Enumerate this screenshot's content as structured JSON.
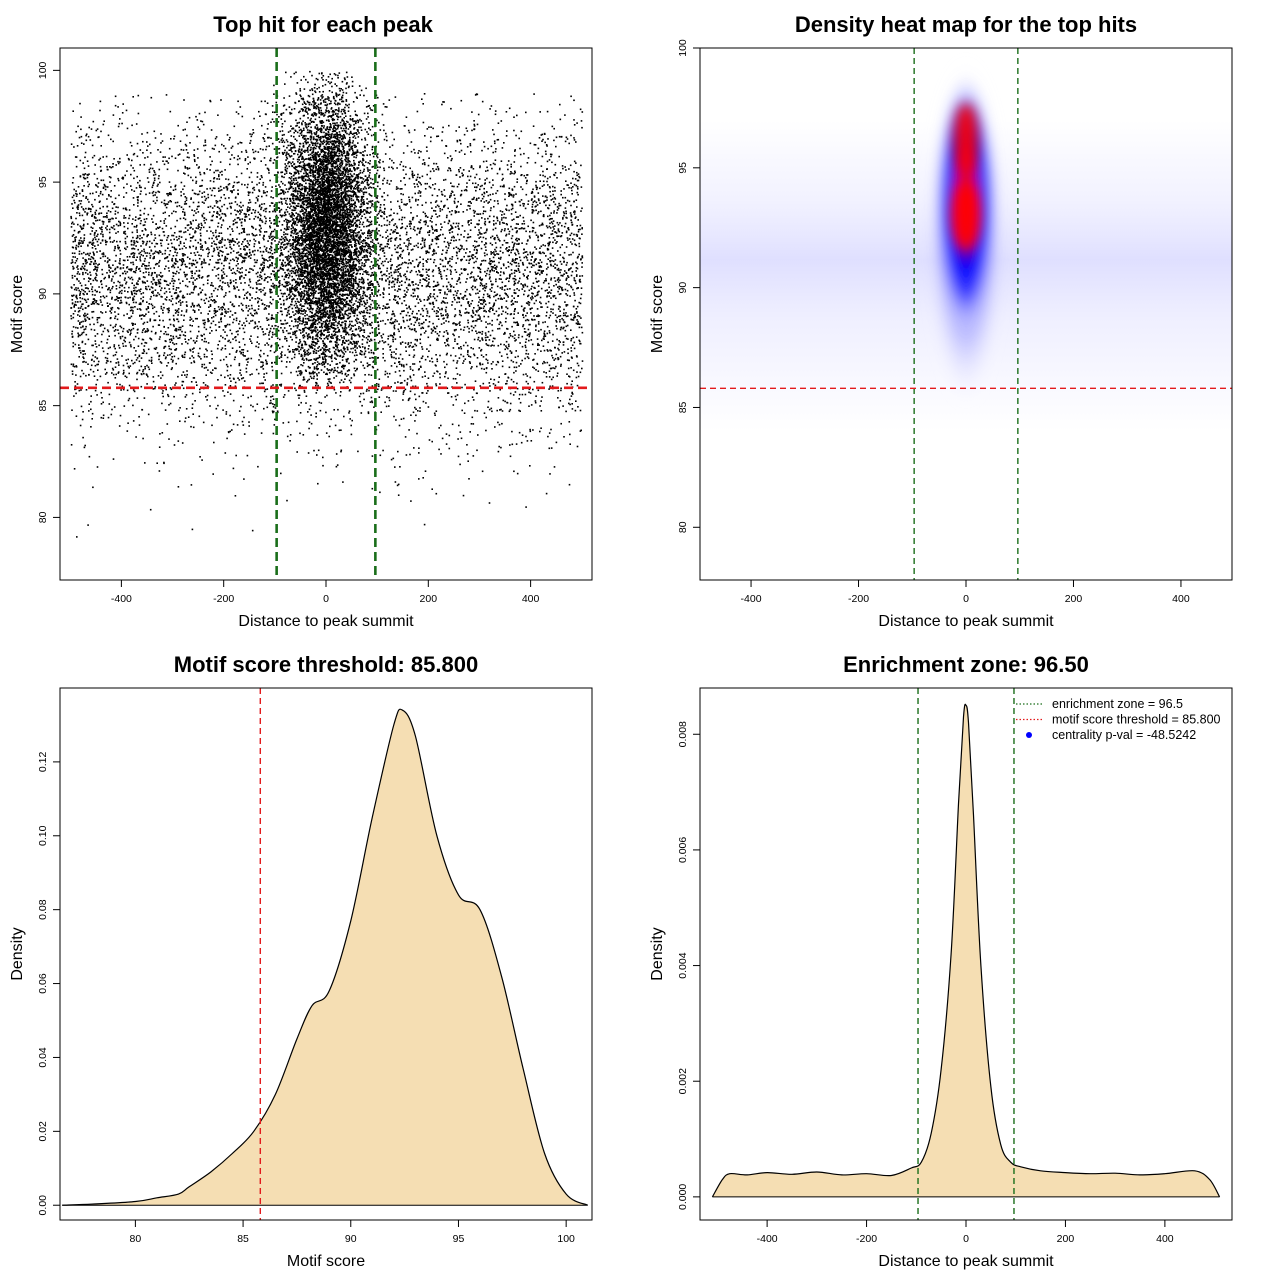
{
  "colors": {
    "scatter_point": "#000000",
    "threshold_line": "#e31a1c",
    "enrichment_line": "#1a6e1a",
    "density_fill": "#f5deb3",
    "heat_low": "#ffffff",
    "heat_mid": "#0000ff",
    "heat_high": "#ff0000",
    "legend_point": "#0000ff"
  },
  "chart_data": [
    {
      "type": "scatter",
      "title": "Top hit for each peak",
      "xlabel": "Distance to peak summit",
      "ylabel": "Motif score",
      "xlim": [
        -520,
        520
      ],
      "ylim": [
        77.2,
        101.0
      ],
      "xticks": [
        -400,
        -200,
        0,
        200,
        400
      ],
      "yticks": [
        80,
        85,
        90,
        95,
        100
      ],
      "n_points_approx": 15000,
      "x_range": [
        -500,
        500
      ],
      "y_range": [
        77.8,
        100
      ],
      "central_cluster": {
        "x_center": 0,
        "x_sd": 30,
        "y_center": 93,
        "y_range": [
          86,
          100
        ]
      },
      "background": {
        "y_center": 91,
        "y_range": [
          78,
          99
        ]
      },
      "hlines": [
        {
          "y": 85.8,
          "label": "motif score threshold"
        }
      ],
      "vlines": [
        {
          "x": -96.5
        },
        {
          "x": 96.5
        }
      ]
    },
    {
      "type": "heatmap",
      "title": "Density heat map for the top hits",
      "xlabel": "Distance to peak summit",
      "ylabel": "Motif score",
      "xlim": [
        -495,
        495
      ],
      "ylim": [
        77.8,
        100
      ],
      "xticks": [
        -400,
        -200,
        0,
        200,
        400
      ],
      "yticks": [
        80,
        85,
        90,
        95,
        100
      ],
      "peak": {
        "x": 0,
        "y": 93.5
      },
      "hlines": [
        {
          "y": 85.8
        }
      ],
      "vlines": [
        {
          "x": -96.5
        },
        {
          "x": 96.5
        }
      ]
    },
    {
      "type": "area",
      "title": "Motif score threshold: 85.800",
      "xlabel": "Motif score",
      "ylabel": "Density",
      "xlim": [
        76.5,
        101.2
      ],
      "ylim": [
        -0.004,
        0.14
      ],
      "xticks": [
        80,
        85,
        90,
        95,
        100
      ],
      "yticks": [
        0.0,
        0.02,
        0.04,
        0.06,
        0.08,
        0.1,
        0.12
      ],
      "ytick_labels": [
        "0.00",
        "0.02",
        "0.04",
        "0.06",
        "0.08",
        "0.10",
        "0.12"
      ],
      "x": [
        76.6,
        78,
        80,
        81,
        82,
        82.5,
        83.5,
        84.5,
        85.5,
        86.5,
        87.5,
        88.2,
        89,
        90,
        91,
        92,
        92.4,
        93,
        94,
        95,
        96,
        97,
        98,
        99,
        100,
        101
      ],
      "y": [
        0.0,
        0.0003,
        0.001,
        0.002,
        0.003,
        0.005,
        0.009,
        0.014,
        0.02,
        0.03,
        0.045,
        0.054,
        0.058,
        0.077,
        0.105,
        0.13,
        0.134,
        0.127,
        0.1,
        0.084,
        0.08,
        0.062,
        0.037,
        0.014,
        0.003,
        0.0
      ],
      "vlines": [
        {
          "x": 85.8
        }
      ]
    },
    {
      "type": "area",
      "title": "Enrichment zone: 96.50",
      "xlabel": "Distance to peak summit",
      "ylabel": "Density",
      "xlim": [
        -535,
        535
      ],
      "ylim": [
        -0.0004,
        0.0088
      ],
      "xticks": [
        -400,
        -200,
        0,
        200,
        400
      ],
      "yticks": [
        0.0,
        0.002,
        0.004,
        0.006,
        0.008
      ],
      "ytick_labels": [
        "0.000",
        "0.002",
        "0.004",
        "0.006",
        "0.008"
      ],
      "x": [
        -510,
        -490,
        -475,
        -440,
        -400,
        -350,
        -300,
        -250,
        -200,
        -150,
        -110,
        -90,
        -70,
        -50,
        -30,
        -15,
        -5,
        0,
        5,
        15,
        30,
        50,
        70,
        90,
        110,
        150,
        200,
        250,
        300,
        350,
        400,
        460,
        490,
        510
      ],
      "y": [
        0.0,
        0.0003,
        0.0004,
        0.00038,
        0.00042,
        0.00039,
        0.00043,
        0.00038,
        0.0004,
        0.00037,
        0.0005,
        0.0006,
        0.0011,
        0.0022,
        0.0042,
        0.0068,
        0.0083,
        0.0085,
        0.0082,
        0.0066,
        0.004,
        0.0019,
        0.0009,
        0.0006,
        0.00052,
        0.00045,
        0.00042,
        0.0004,
        0.00041,
        0.00038,
        0.0004,
        0.00045,
        0.0003,
        0.0
      ],
      "vlines": [
        {
          "x": -96.5
        },
        {
          "x": 96.5
        }
      ],
      "legend": {
        "placement": "top-right",
        "entries": [
          {
            "label": "enrichment zone = 96.5",
            "symbol": "dotted-line",
            "color": "#1a6e1a"
          },
          {
            "label": "motif score threshold = 85.800",
            "symbol": "dotted-line",
            "color": "#e31a1c"
          },
          {
            "label": "centrality p-val = -48.5242",
            "symbol": "point",
            "color": "#0000ff"
          }
        ]
      }
    }
  ]
}
